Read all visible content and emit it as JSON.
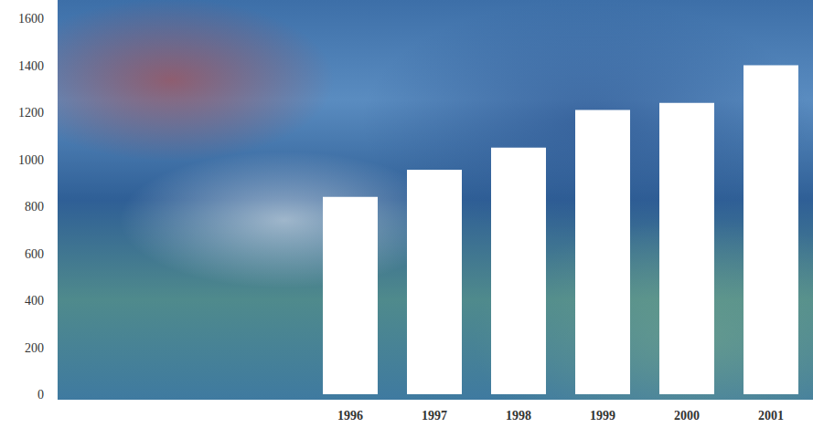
{
  "chart_data": {
    "type": "bar",
    "categories": [
      "1996",
      "1997",
      "1998",
      "1999",
      "2000",
      "2001"
    ],
    "values": [
      840,
      955,
      1050,
      1210,
      1240,
      1400
    ],
    "color": "#ffffff",
    "ylim": [
      0,
      1600
    ],
    "yticks": [
      0,
      200,
      400,
      600,
      800,
      1000,
      1200,
      1400,
      1600
    ],
    "grid": false
  }
}
